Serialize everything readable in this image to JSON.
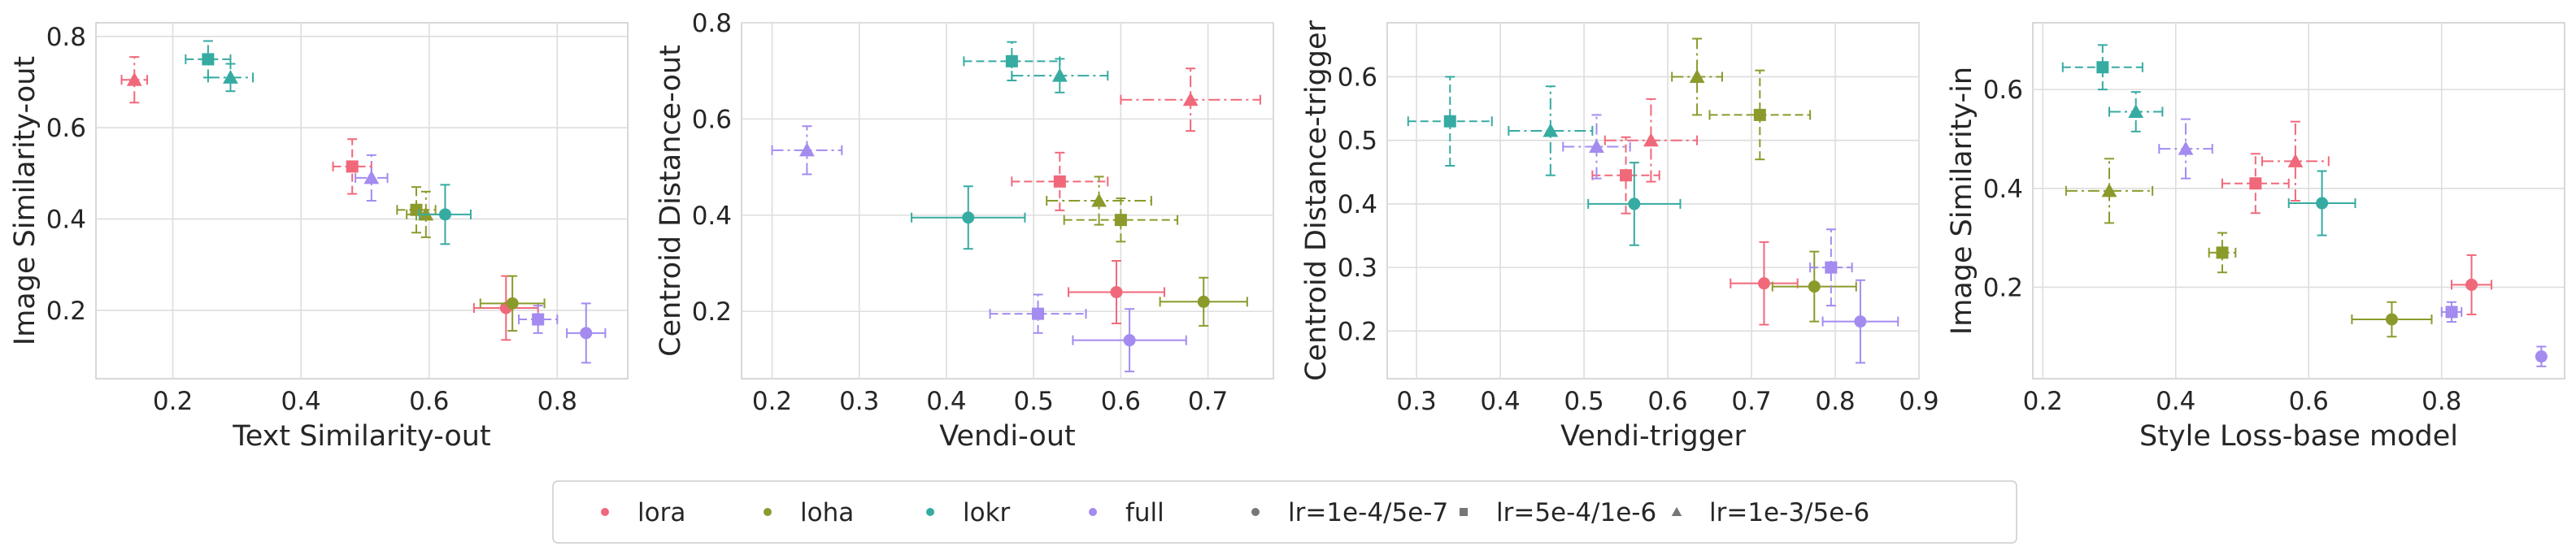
{
  "figure": {
    "legend": {
      "placement": "bottom-center",
      "entries": [
        {
          "label": "lora",
          "kind": "method",
          "key": "lora"
        },
        {
          "label": "loha",
          "kind": "method",
          "key": "loha"
        },
        {
          "label": "lokr",
          "kind": "method",
          "key": "lokr"
        },
        {
          "label": "full",
          "kind": "method",
          "key": "full"
        },
        {
          "label": "lr=1e-4/5e-7",
          "kind": "lr",
          "key": "circle"
        },
        {
          "label": "lr=5e-4/1e-6",
          "kind": "lr",
          "key": "square"
        },
        {
          "label": "lr=1e-3/5e-6",
          "kind": "lr",
          "key": "triangle"
        }
      ]
    },
    "colors": {
      "lora": "#f0697a",
      "loha": "#8c9a2c",
      "lokr": "#36aba2",
      "full": "#a38bf0",
      "grid": "#dddddd",
      "lr_marker": "#777777"
    },
    "markers": {
      "lr1": "circle",
      "lr2": "square",
      "lr3": "triangle"
    }
  },
  "chart_data": [
    {
      "type": "scatter",
      "xlabel": "Text Similarity-out",
      "ylabel": "Image Similarity-out",
      "xlim": [
        0.08,
        0.91
      ],
      "ylim": [
        0.05,
        0.83
      ],
      "grid": true,
      "xticks": [
        "0.2",
        "0.4",
        "0.6",
        "0.8"
      ],
      "yticks": [
        "0.2",
        "0.4",
        "0.6",
        "0.8"
      ],
      "points": [
        {
          "method": "lora",
          "lr": "lr1",
          "x": 0.72,
          "y": 0.205,
          "xerr": 0.05,
          "yerr": 0.07
        },
        {
          "method": "lora",
          "lr": "lr2",
          "x": 0.48,
          "y": 0.515,
          "xerr": 0.03,
          "yerr": 0.06
        },
        {
          "method": "lora",
          "lr": "lr3",
          "x": 0.14,
          "y": 0.705,
          "xerr": 0.02,
          "yerr": 0.05
        },
        {
          "method": "loha",
          "lr": "lr1",
          "x": 0.73,
          "y": 0.215,
          "xerr": 0.05,
          "yerr": 0.06
        },
        {
          "method": "loha",
          "lr": "lr2",
          "x": 0.58,
          "y": 0.42,
          "xerr": 0.03,
          "yerr": 0.05
        },
        {
          "method": "loha",
          "lr": "lr3",
          "x": 0.595,
          "y": 0.41,
          "xerr": 0.03,
          "yerr": 0.05
        },
        {
          "method": "lokr",
          "lr": "lr1",
          "x": 0.625,
          "y": 0.41,
          "xerr": 0.04,
          "yerr": 0.065
        },
        {
          "method": "lokr",
          "lr": "lr2",
          "x": 0.255,
          "y": 0.75,
          "xerr": 0.035,
          "yerr": 0.04
        },
        {
          "method": "lokr",
          "lr": "lr3",
          "x": 0.29,
          "y": 0.71,
          "xerr": 0.035,
          "yerr": 0.03
        },
        {
          "method": "full",
          "lr": "lr1",
          "x": 0.845,
          "y": 0.15,
          "xerr": 0.03,
          "yerr": 0.065
        },
        {
          "method": "full",
          "lr": "lr2",
          "x": 0.77,
          "y": 0.18,
          "xerr": 0.03,
          "yerr": 0.03
        },
        {
          "method": "full",
          "lr": "lr3",
          "x": 0.51,
          "y": 0.49,
          "xerr": 0.025,
          "yerr": 0.05
        }
      ]
    },
    {
      "type": "scatter",
      "xlabel": "Vendi-out",
      "ylabel": "Centroid Distance-out",
      "xlim": [
        0.165,
        0.775
      ],
      "ylim": [
        0.06,
        0.8
      ],
      "grid": true,
      "xticks": [
        "0.2",
        "0.3",
        "0.4",
        "0.5",
        "0.6",
        "0.7"
      ],
      "yticks": [
        "0.2",
        "0.4",
        "0.6",
        "0.8"
      ],
      "points": [
        {
          "method": "lora",
          "lr": "lr1",
          "x": 0.595,
          "y": 0.24,
          "xerr": 0.055,
          "yerr": 0.065
        },
        {
          "method": "lora",
          "lr": "lr2",
          "x": 0.53,
          "y": 0.47,
          "xerr": 0.055,
          "yerr": 0.06
        },
        {
          "method": "lora",
          "lr": "lr3",
          "x": 0.68,
          "y": 0.64,
          "xerr": 0.08,
          "yerr": 0.065
        },
        {
          "method": "loha",
          "lr": "lr1",
          "x": 0.695,
          "y": 0.22,
          "xerr": 0.05,
          "yerr": 0.05
        },
        {
          "method": "loha",
          "lr": "lr2",
          "x": 0.6,
          "y": 0.39,
          "xerr": 0.065,
          "yerr": 0.045
        },
        {
          "method": "loha",
          "lr": "lr3",
          "x": 0.575,
          "y": 0.43,
          "xerr": 0.06,
          "yerr": 0.05
        },
        {
          "method": "lokr",
          "lr": "lr1",
          "x": 0.425,
          "y": 0.395,
          "xerr": 0.065,
          "yerr": 0.065
        },
        {
          "method": "lokr",
          "lr": "lr2",
          "x": 0.475,
          "y": 0.72,
          "xerr": 0.055,
          "yerr": 0.04
        },
        {
          "method": "lokr",
          "lr": "lr3",
          "x": 0.53,
          "y": 0.69,
          "xerr": 0.055,
          "yerr": 0.035
        },
        {
          "method": "full",
          "lr": "lr1",
          "x": 0.61,
          "y": 0.14,
          "xerr": 0.065,
          "yerr": 0.065
        },
        {
          "method": "full",
          "lr": "lr2",
          "x": 0.505,
          "y": 0.195,
          "xerr": 0.055,
          "yerr": 0.04
        },
        {
          "method": "full",
          "lr": "lr3",
          "x": 0.24,
          "y": 0.535,
          "xerr": 0.04,
          "yerr": 0.05
        }
      ]
    },
    {
      "type": "scatter",
      "xlabel": "Vendi-trigger",
      "ylabel": "Centroid Distance-trigger",
      "xlim": [
        0.265,
        0.9
      ],
      "ylim": [
        0.125,
        0.685
      ],
      "grid": true,
      "xticks": [
        "0.3",
        "0.4",
        "0.5",
        "0.6",
        "0.7",
        "0.8",
        "0.9"
      ],
      "yticks": [
        "0.2",
        "0.3",
        "0.4",
        "0.5",
        "0.6"
      ],
      "points": [
        {
          "method": "lora",
          "lr": "lr1",
          "x": 0.715,
          "y": 0.275,
          "xerr": 0.04,
          "yerr": 0.065
        },
        {
          "method": "lora",
          "lr": "lr2",
          "x": 0.55,
          "y": 0.445,
          "xerr": 0.04,
          "yerr": 0.06
        },
        {
          "method": "lora",
          "lr": "lr3",
          "x": 0.58,
          "y": 0.5,
          "xerr": 0.055,
          "yerr": 0.065
        },
        {
          "method": "loha",
          "lr": "lr1",
          "x": 0.775,
          "y": 0.27,
          "xerr": 0.05,
          "yerr": 0.055
        },
        {
          "method": "loha",
          "lr": "lr2",
          "x": 0.71,
          "y": 0.54,
          "xerr": 0.06,
          "yerr": 0.07
        },
        {
          "method": "loha",
          "lr": "lr3",
          "x": 0.635,
          "y": 0.6,
          "xerr": 0.03,
          "yerr": 0.06
        },
        {
          "method": "lokr",
          "lr": "lr1",
          "x": 0.56,
          "y": 0.4,
          "xerr": 0.055,
          "yerr": 0.065
        },
        {
          "method": "lokr",
          "lr": "lr2",
          "x": 0.34,
          "y": 0.53,
          "xerr": 0.05,
          "yerr": 0.07
        },
        {
          "method": "lokr",
          "lr": "lr3",
          "x": 0.46,
          "y": 0.515,
          "xerr": 0.05,
          "yerr": 0.07
        },
        {
          "method": "full",
          "lr": "lr1",
          "x": 0.83,
          "y": 0.215,
          "xerr": 0.045,
          "yerr": 0.065
        },
        {
          "method": "full",
          "lr": "lr2",
          "x": 0.795,
          "y": 0.3,
          "xerr": 0.025,
          "yerr": 0.06
        },
        {
          "method": "full",
          "lr": "lr3",
          "x": 0.515,
          "y": 0.49,
          "xerr": 0.04,
          "yerr": 0.05
        }
      ]
    },
    {
      "type": "scatter",
      "xlabel": "Style Loss-base model",
      "ylabel": "Image Similarity-in",
      "xlim": [
        0.185,
        0.985
      ],
      "ylim": [
        0.015,
        0.735
      ],
      "grid": true,
      "xticks": [
        "0.2",
        "0.4",
        "0.6",
        "0.8"
      ],
      "yticks": [
        "0.2",
        "0.4",
        "0.6"
      ],
      "points": [
        {
          "method": "lora",
          "lr": "lr1",
          "x": 0.845,
          "y": 0.205,
          "xerr": 0.03,
          "yerr": 0.06
        },
        {
          "method": "lora",
          "lr": "lr2",
          "x": 0.52,
          "y": 0.41,
          "xerr": 0.05,
          "yerr": 0.06
        },
        {
          "method": "lora",
          "lr": "lr3",
          "x": 0.58,
          "y": 0.455,
          "xerr": 0.05,
          "yerr": 0.08
        },
        {
          "method": "loha",
          "lr": "lr1",
          "x": 0.725,
          "y": 0.135,
          "xerr": 0.06,
          "yerr": 0.035
        },
        {
          "method": "loha",
          "lr": "lr2",
          "x": 0.47,
          "y": 0.27,
          "xerr": 0.02,
          "yerr": 0.04
        },
        {
          "method": "loha",
          "lr": "lr3",
          "x": 0.3,
          "y": 0.395,
          "xerr": 0.065,
          "yerr": 0.065
        },
        {
          "method": "lokr",
          "lr": "lr1",
          "x": 0.62,
          "y": 0.37,
          "xerr": 0.05,
          "yerr": 0.065
        },
        {
          "method": "lokr",
          "lr": "lr2",
          "x": 0.29,
          "y": 0.645,
          "xerr": 0.06,
          "yerr": 0.045
        },
        {
          "method": "lokr",
          "lr": "lr3",
          "x": 0.34,
          "y": 0.555,
          "xerr": 0.04,
          "yerr": 0.04
        },
        {
          "method": "full",
          "lr": "lr1",
          "x": 0.95,
          "y": 0.06,
          "xerr": 0.005,
          "yerr": 0.02
        },
        {
          "method": "full",
          "lr": "lr2",
          "x": 0.815,
          "y": 0.15,
          "xerr": 0.015,
          "yerr": 0.02
        },
        {
          "method": "full",
          "lr": "lr3",
          "x": 0.415,
          "y": 0.48,
          "xerr": 0.04,
          "yerr": 0.06
        }
      ]
    }
  ]
}
